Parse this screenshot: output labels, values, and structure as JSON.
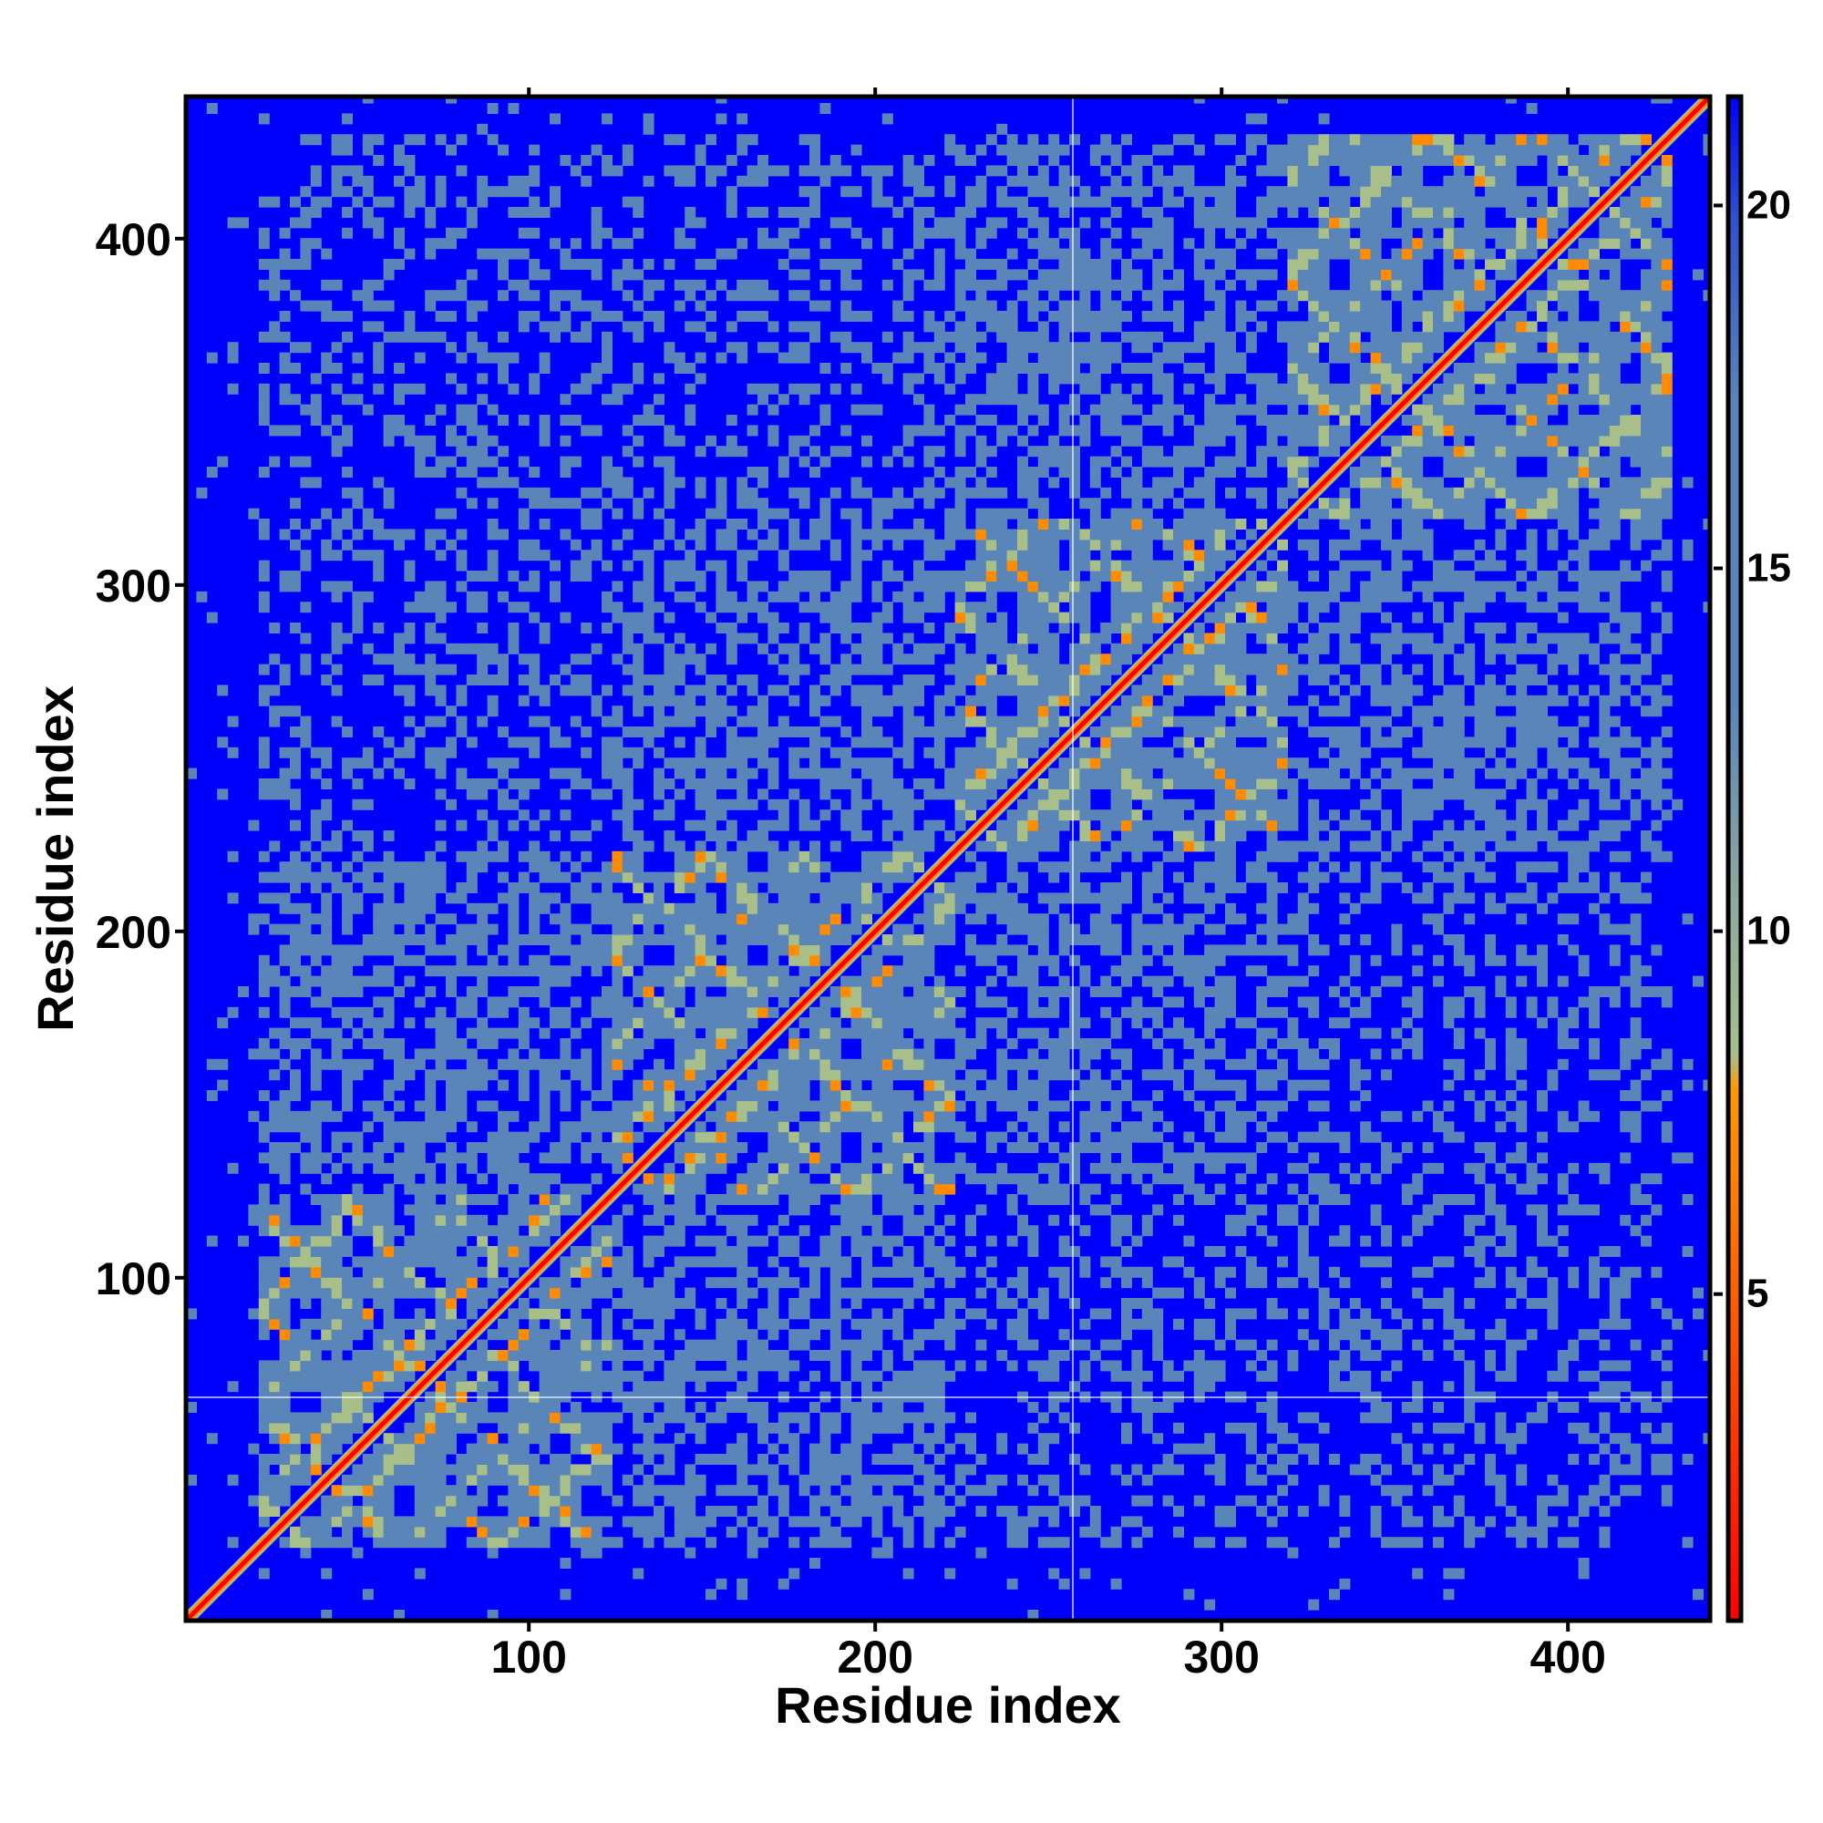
{
  "chart_data": {
    "type": "heatmap",
    "title": "",
    "xlabel": "Residue index",
    "ylabel": "Residue index",
    "xlim": [
      1,
      441
    ],
    "ylim": [
      1,
      441
    ],
    "x_ticks": [
      100,
      200,
      300,
      400
    ],
    "y_ticks": [
      100,
      200,
      300,
      400
    ],
    "colorbar": {
      "ticks": [
        5,
        10,
        15,
        20
      ],
      "range": [
        0.5,
        21.5
      ],
      "colors": [
        "#ff0000",
        "#ff8c00",
        "#a8bf8a",
        "#5a85b8",
        "#0000ff"
      ]
    },
    "background_value_color": "#0000ff",
    "domains": [
      {
        "start": 20,
        "end": 122
      },
      {
        "start": 122,
        "end": 222
      },
      {
        "start": 222,
        "end": 318
      },
      {
        "start": 318,
        "end": 428
      }
    ],
    "diagonal_color": "#ff0000"
  }
}
